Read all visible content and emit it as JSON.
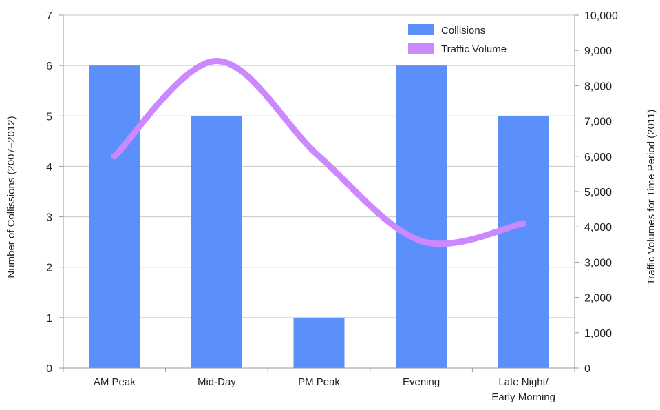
{
  "chart_data": {
    "type": "bar",
    "categories": [
      [
        "AM Peak"
      ],
      [
        "Mid-Day"
      ],
      [
        "PM Peak"
      ],
      [
        "Evening"
      ],
      [
        "Late Night/",
        "Early Morning"
      ]
    ],
    "series": [
      {
        "name": "Collisions",
        "type": "bar",
        "axis": "left",
        "color": "#5b8ff9",
        "values": [
          6,
          5,
          1,
          6,
          5
        ]
      },
      {
        "name": "Traffic Volume",
        "type": "line",
        "axis": "right",
        "color": "#cc88ff",
        "smooth": true,
        "values": [
          6000,
          8700,
          6000,
          3600,
          4100
        ]
      }
    ],
    "ylabel": "Number of Collissions (2007–2012)",
    "ylabel_right": "Traffic Volumes for Time Period (2011)",
    "ylim": [
      0,
      7
    ],
    "ylim_right": [
      0,
      10000
    ],
    "yticks": [
      "0",
      "1",
      "2",
      "3",
      "4",
      "5",
      "6",
      "7"
    ],
    "yticks_right": [
      "0",
      "1,000",
      "2,000",
      "3,000",
      "4,000",
      "5,000",
      "6,000",
      "7,000",
      "8,000",
      "9,000",
      "10,000"
    ],
    "grid": true,
    "legend": "top-right"
  }
}
